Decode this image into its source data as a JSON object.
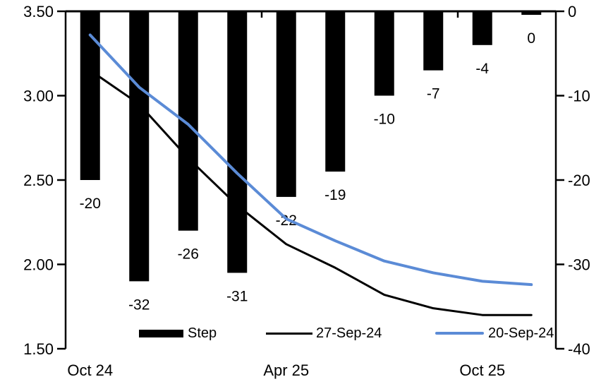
{
  "chart_data": {
    "type": "bar",
    "subtype": "bar-line-combo",
    "title": "",
    "x_axis": {
      "tick_labels": [
        "Oct 24",
        "Apr 25",
        "Oct 25"
      ],
      "label_category_index": [
        0,
        4,
        8
      ],
      "boundary_tick_category_index": [
        4,
        8
      ]
    },
    "left_axis": {
      "min": 1.5,
      "max": 3.5,
      "ticks": [
        3.5,
        3.0,
        2.5,
        2.0,
        1.5
      ],
      "tick_labels": [
        "3.50",
        "3.00",
        "2.50",
        "2.00",
        "1.50"
      ]
    },
    "right_axis": {
      "min": -40,
      "max": 0,
      "ticks": [
        0,
        -10,
        -20,
        -30,
        -40
      ],
      "tick_labels": [
        "0",
        "-10",
        "-20",
        "-30",
        "-40"
      ]
    },
    "bar_series": {
      "name": "Step",
      "axis": "right",
      "color": "#000000",
      "values": [
        -20,
        -32,
        -26,
        -31,
        -22,
        -19,
        -10,
        -7,
        -4,
        0
      ],
      "data_labels": [
        "-20",
        "-32",
        "-26",
        "-31",
        "-22",
        "-19",
        "-10",
        "-7",
        "-4",
        "0"
      ]
    },
    "line_series": [
      {
        "name": "27-Sep-24",
        "axis": "left",
        "color": "#000000",
        "stroke_width": 3,
        "values": [
          3.15,
          2.95,
          2.63,
          2.35,
          2.12,
          1.98,
          1.82,
          1.74,
          1.7,
          1.7
        ]
      },
      {
        "name": "20-Sep-24",
        "axis": "left",
        "color": "#5B8BD6",
        "stroke_width": 4,
        "values": [
          3.36,
          3.05,
          2.83,
          2.54,
          2.27,
          2.14,
          2.02,
          1.95,
          1.9,
          1.88
        ]
      }
    ],
    "legend": {
      "position": "bottom-inside",
      "entries": [
        "Step",
        "27-Sep-24",
        "20-Sep-24"
      ]
    },
    "grid": "off"
  },
  "colors": {
    "bar": "#000000",
    "line_black": "#000000",
    "line_blue": "#5B8BD6",
    "axis": "#000000",
    "background": "#ffffff"
  }
}
